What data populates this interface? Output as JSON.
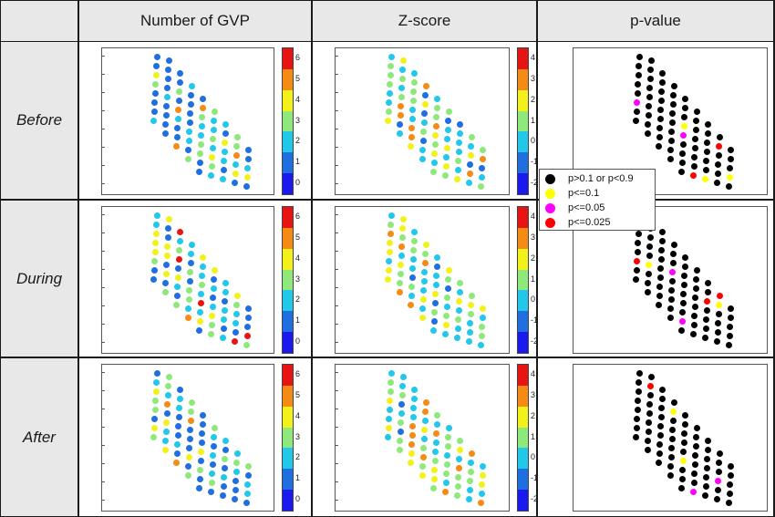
{
  "table": {
    "column_headers": [
      "Number of GVP",
      "Z-score",
      "p-value"
    ],
    "row_headers": [
      "Before",
      "During",
      "After"
    ]
  },
  "colorbars": {
    "gvp": {
      "ticks": [
        "6",
        "5",
        "4",
        "3",
        "2",
        "1",
        "0"
      ]
    },
    "z": {
      "ticks": [
        "4",
        "3",
        "2",
        "1",
        "0",
        "-1",
        "-2"
      ]
    }
  },
  "legend": {
    "items": [
      {
        "label": "p>0.1 or p<0.9",
        "color": "#000000"
      },
      {
        "label": "p<=0.1",
        "color": "#ffff00"
      },
      {
        "label": "p<=0.05",
        "color": "#ff00ff"
      },
      {
        "label": "p<=0.025",
        "color": "#ff0000"
      }
    ]
  },
  "palette": [
    "#1a1aee",
    "#1f6fe0",
    "#22c8ea",
    "#8fe87a",
    "#f2f21a",
    "#f58a14",
    "#e81414"
  ],
  "chart_data": [
    {
      "type": "scatter",
      "row": "Before",
      "column": "Number of GVP",
      "variable": "number of GVP per electrode",
      "colorscale_range": [
        0,
        6.5
      ],
      "value_description": "color-coded electrode values on a diamond electrode grid"
    },
    {
      "type": "scatter",
      "row": "Before",
      "column": "Z-score",
      "variable": "z-score per electrode",
      "colorscale_range": [
        -2.5,
        4.5
      ]
    },
    {
      "type": "scatter",
      "row": "Before",
      "column": "p-value",
      "variable": "p-value category per electrode",
      "categories": [
        "p>0.1 or p<0.9",
        "p<=0.1",
        "p<=0.05",
        "p<=0.025"
      ]
    },
    {
      "type": "scatter",
      "row": "During",
      "column": "Number of GVP",
      "colorscale_range": [
        0,
        6.5
      ]
    },
    {
      "type": "scatter",
      "row": "During",
      "column": "Z-score",
      "colorscale_range": [
        -2.5,
        4.5
      ]
    },
    {
      "type": "scatter",
      "row": "During",
      "column": "p-value",
      "categories": [
        "p>0.1 or p<0.9",
        "p<=0.1",
        "p<=0.05",
        "p<=0.025"
      ]
    },
    {
      "type": "scatter",
      "row": "After",
      "column": "Number of GVP",
      "colorscale_range": [
        0,
        6.5
      ]
    },
    {
      "type": "scatter",
      "row": "After",
      "column": "Z-score",
      "colorscale_range": [
        -2.5,
        4.5
      ]
    },
    {
      "type": "scatter",
      "row": "After",
      "column": "p-value",
      "categories": [
        "p>0.1 or p<0.9",
        "p<=0.1",
        "p<=0.05",
        "p<=0.025"
      ]
    }
  ]
}
